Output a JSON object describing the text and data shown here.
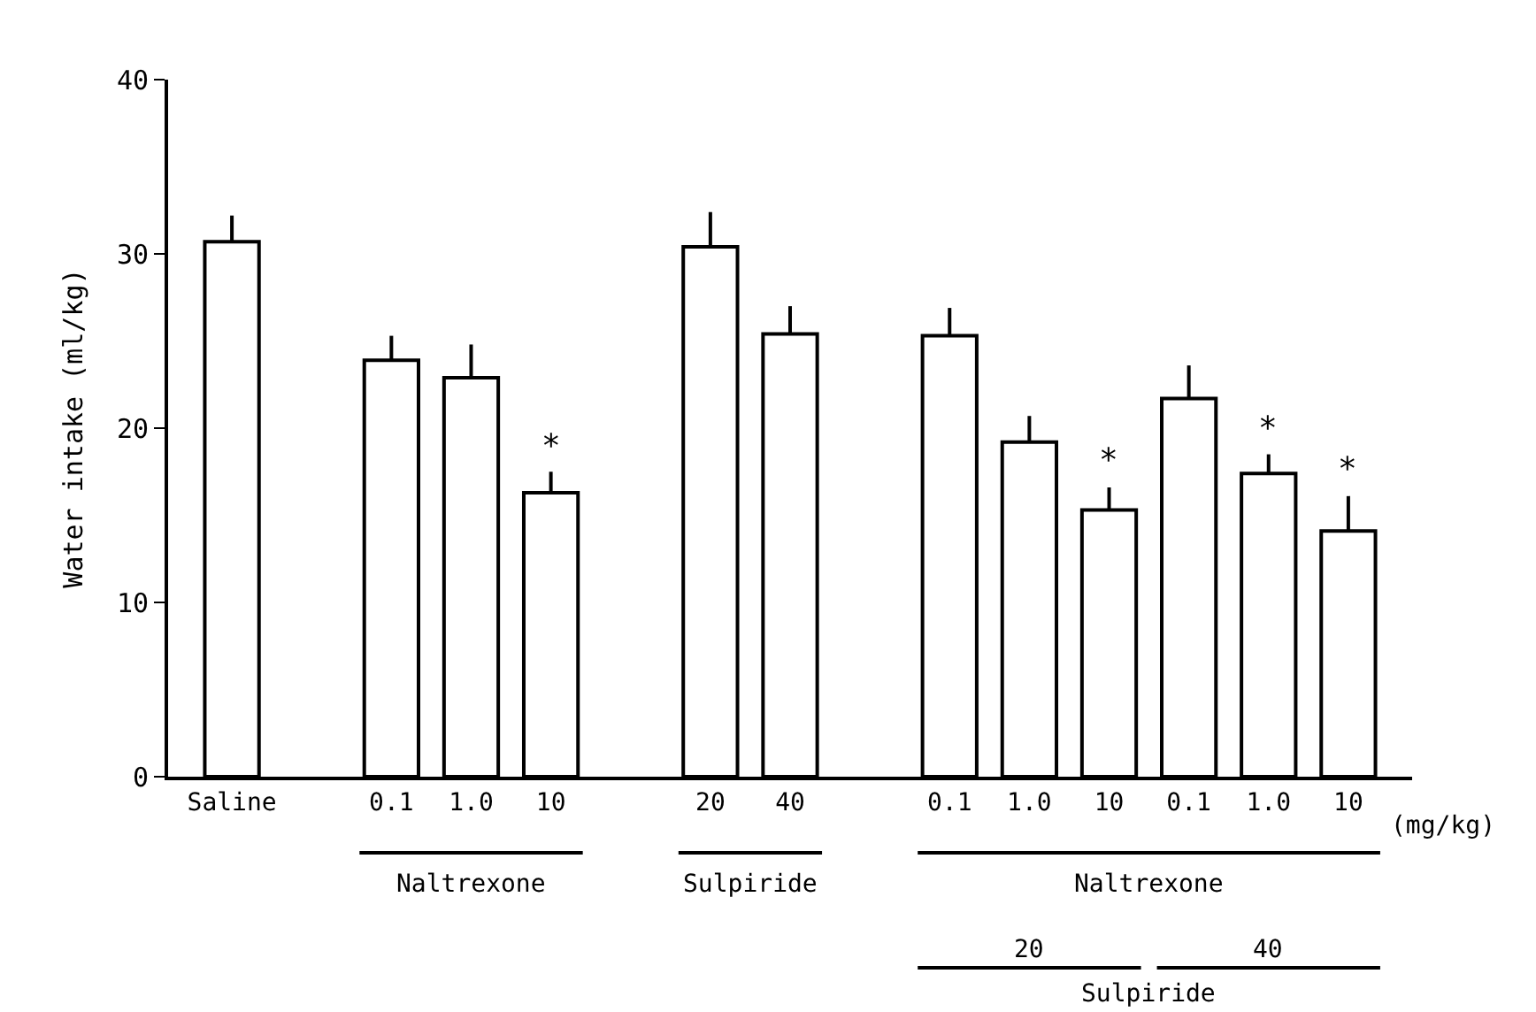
{
  "chart_data": {
    "type": "bar",
    "ylabel": "Water intake (ml/kg)",
    "categories": [
      "Saline",
      null,
      "0.1",
      "1.0",
      "10",
      null,
      "20",
      "40",
      null,
      "0.1",
      "1.0",
      "10",
      "0.1",
      "1.0",
      "10"
    ],
    "values": [
      30.7,
      null,
      23.9,
      22.9,
      16.3,
      null,
      30.4,
      25.4,
      null,
      25.3,
      19.2,
      15.3,
      21.7,
      17.4,
      14.1
    ],
    "errors": [
      [
        30.7,
        32.2
      ],
      null,
      [
        23.9,
        25.3
      ],
      [
        22.9,
        24.8
      ],
      [
        16.3,
        17.5
      ],
      null,
      [
        30.4,
        32.4
      ],
      [
        25.4,
        27.0
      ],
      null,
      [
        25.3,
        26.9
      ],
      [
        19.2,
        20.7
      ],
      [
        15.3,
        16.6
      ],
      [
        21.7,
        23.6
      ],
      [
        17.4,
        18.5
      ],
      [
        14.1,
        16.1
      ]
    ],
    "value_labels": [
      null,
      null,
      null,
      null,
      "*",
      null,
      null,
      null,
      null,
      null,
      null,
      "*",
      null,
      "*",
      "*"
    ],
    "color": "#ffffff",
    "ylim": [
      0,
      40
    ],
    "yticks": [
      0,
      10,
      20,
      30,
      40
    ],
    "annotations": [
      "Naltrexone",
      "Sulpiride",
      "Naltrexone",
      "20",
      "40",
      "Sulpiride",
      "(mg/kg)"
    ]
  }
}
